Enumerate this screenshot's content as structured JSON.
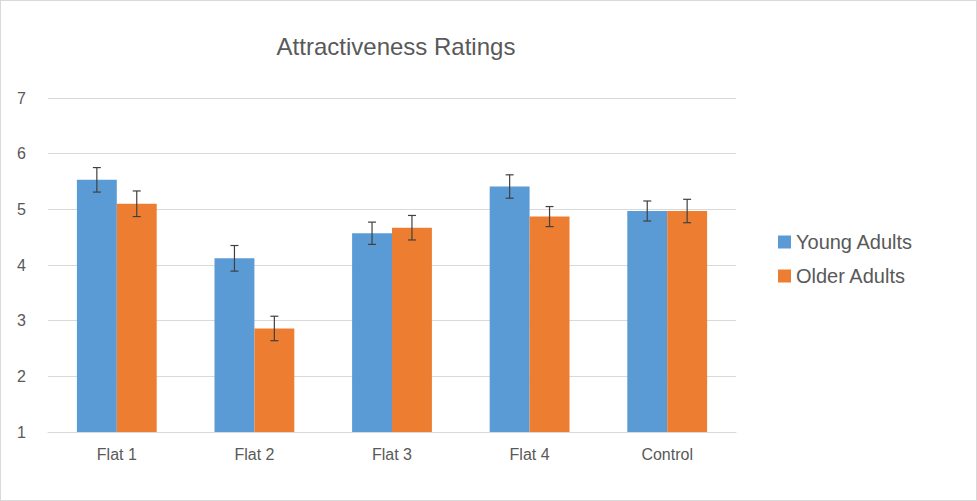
{
  "chart_data": {
    "type": "bar",
    "title": "Attractiveness Ratings",
    "categories": [
      "Flat 1",
      "Flat 2",
      "Flat 3",
      "Flat 4",
      "Control"
    ],
    "series": [
      {
        "name": "Young Adults",
        "color": "#5b9bd5",
        "values": [
          5.53,
          4.12,
          4.57,
          5.41,
          4.97
        ],
        "errors": [
          0.22,
          0.23,
          0.2,
          0.21,
          0.18
        ]
      },
      {
        "name": "Older Adults",
        "color": "#ed7d31",
        "values": [
          5.1,
          2.86,
          4.67,
          4.87,
          4.97
        ],
        "errors": [
          0.23,
          0.22,
          0.22,
          0.18,
          0.21
        ]
      }
    ],
    "ylim": [
      1,
      7
    ],
    "yticks": [
      1,
      2,
      3,
      4,
      5,
      6,
      7
    ],
    "grid": true,
    "legend": "right"
  }
}
